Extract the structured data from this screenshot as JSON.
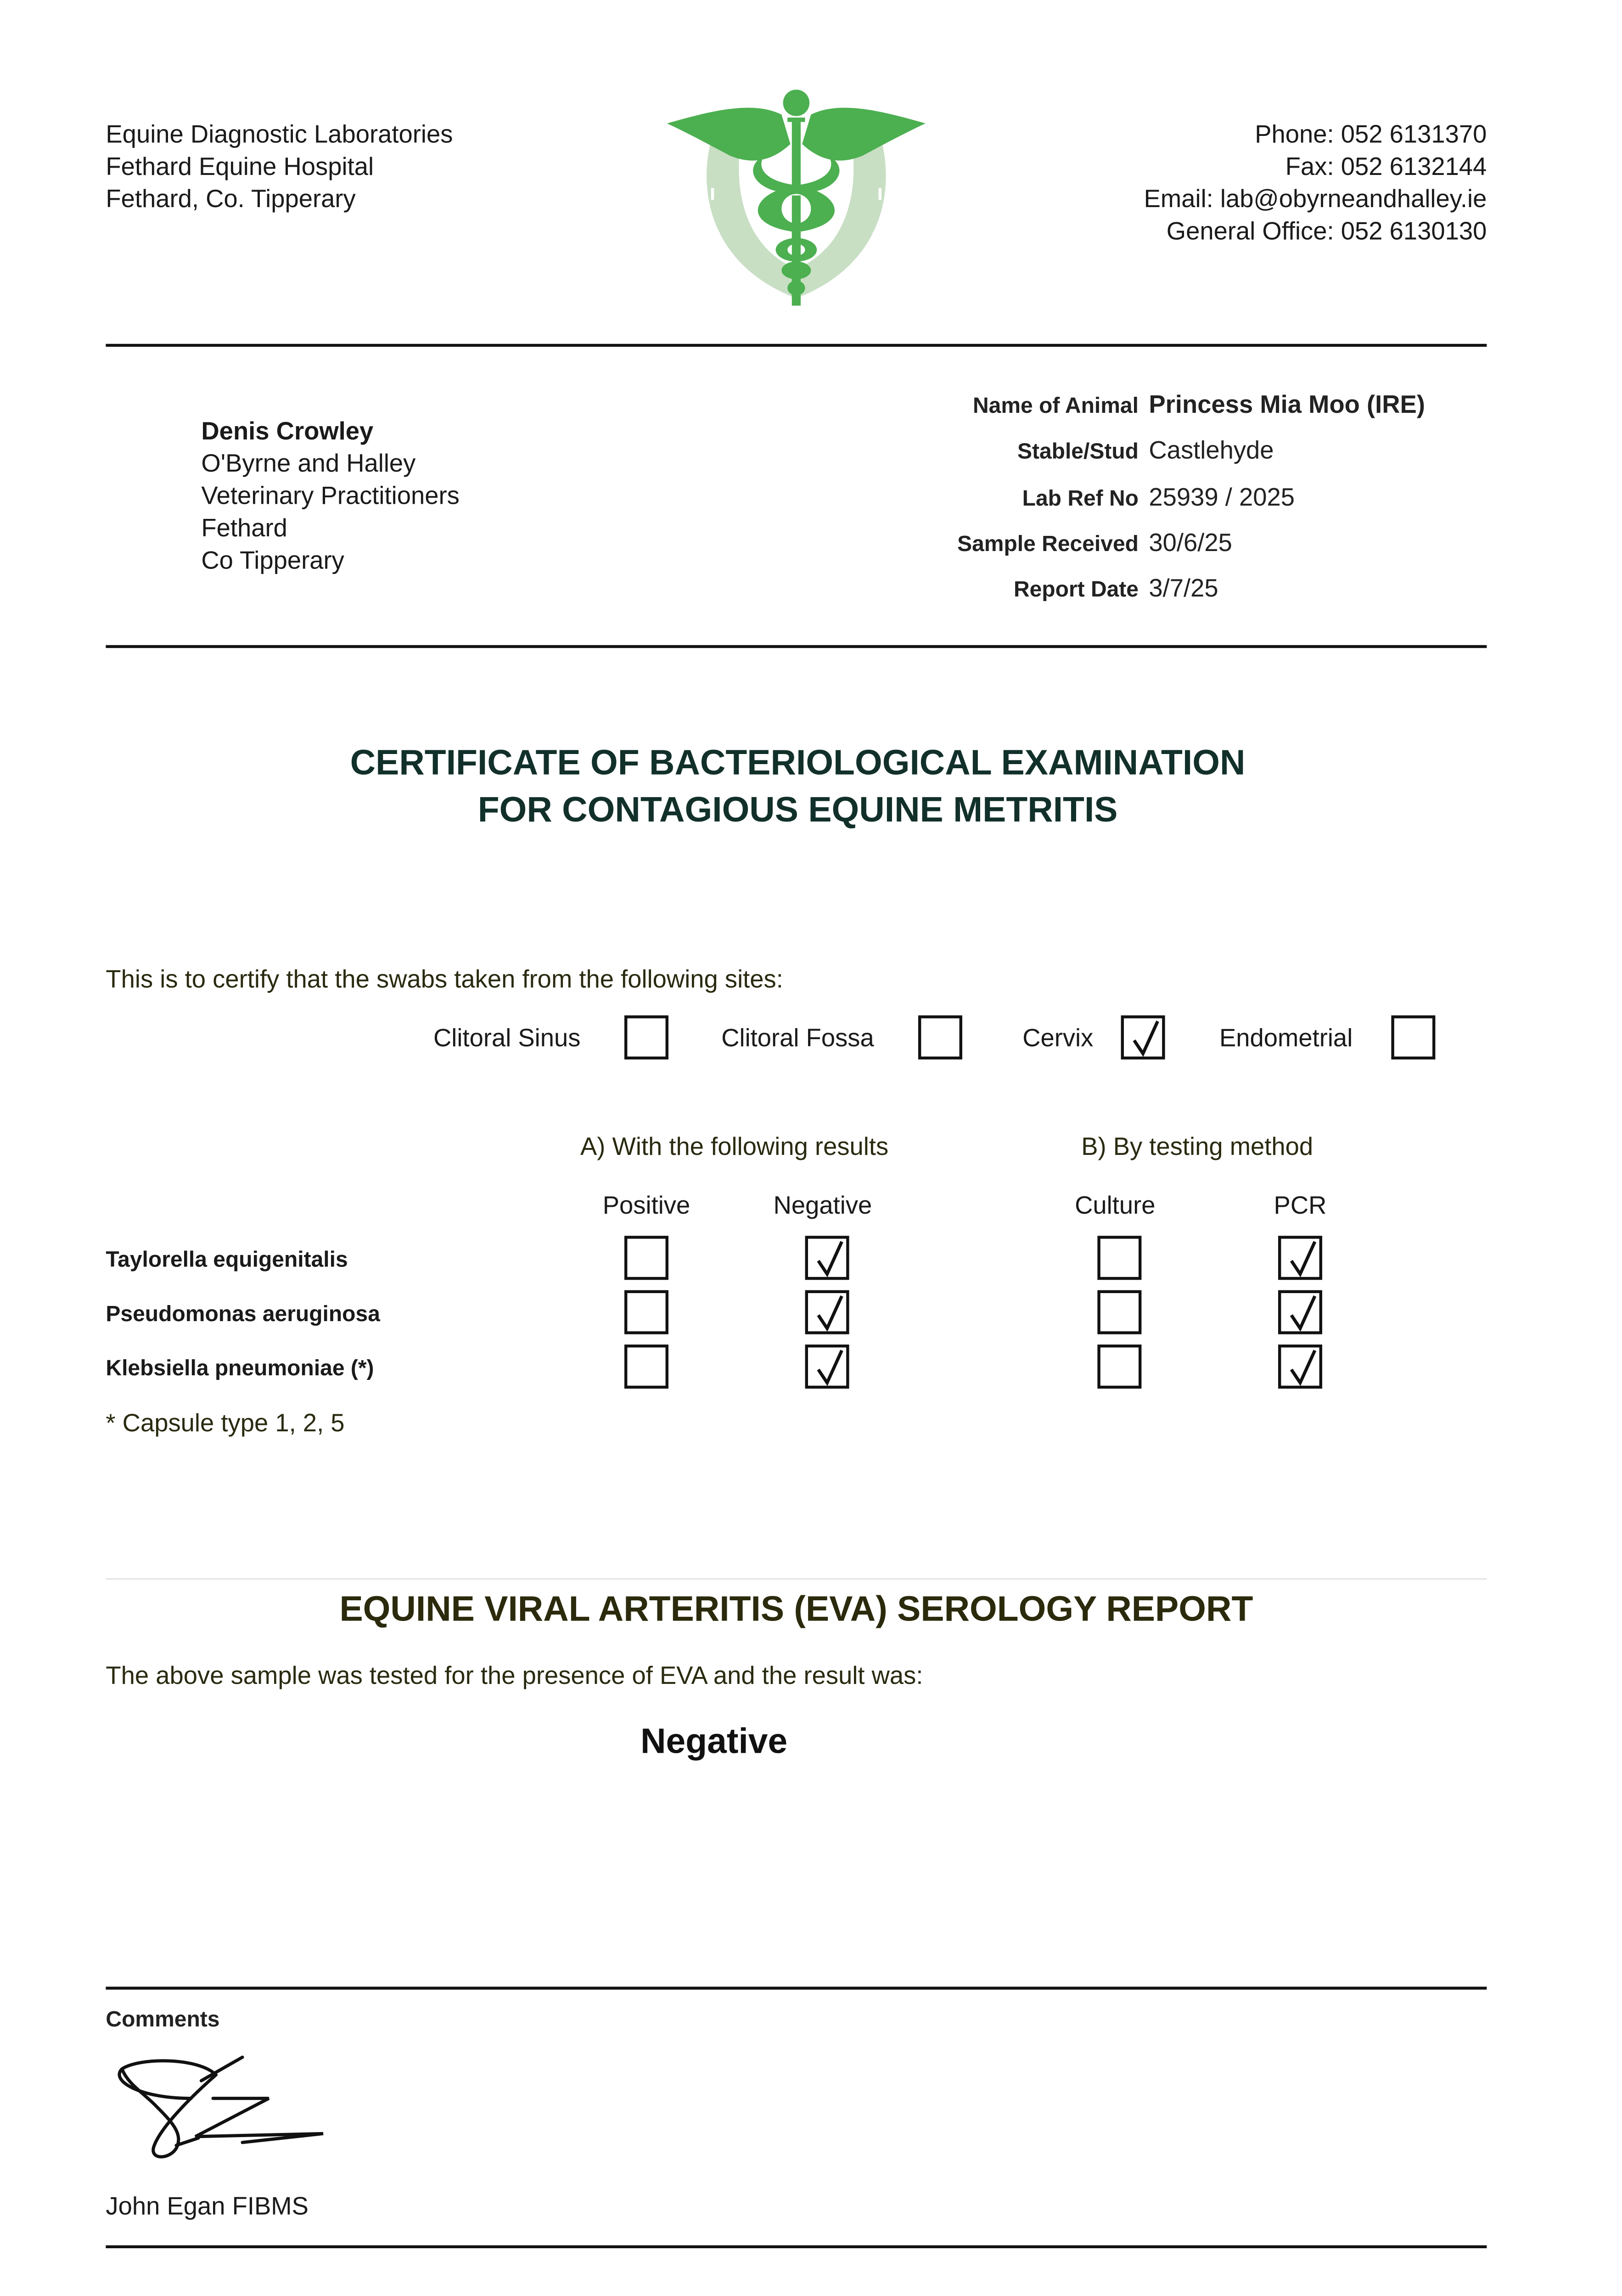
{
  "lab_address": [
    "Equine Diagnostic Laboratories",
    "Fethard Equine Hospital",
    "Fethard, Co. Tipperary"
  ],
  "contact": [
    "Phone: 052 6131370",
    "Fax: 052 6132144",
    "Email: lab@obyrneandhalley.ie",
    "General Office: 052 6130130"
  ],
  "logo": {
    "icon": "caduceus-horseshoe",
    "colors": {
      "caduceus": "#4caf50",
      "horseshoe": "#c8dfc4"
    }
  },
  "recipient": {
    "name": "Denis Crowley",
    "lines": [
      "O'Byrne and Halley",
      "Veterinary Practitioners",
      "Fethard",
      "Co Tipperary"
    ]
  },
  "info": [
    {
      "label": "Name of Animal",
      "value": "Princess Mia Moo (IRE)"
    },
    {
      "label": "Stable/Stud",
      "value": "Castlehyde"
    },
    {
      "label": "Lab Ref No",
      "value": "25939 / 2025"
    },
    {
      "label": "Sample Received",
      "value": "30/6/25"
    },
    {
      "label": "Report Date",
      "value": "3/7/25"
    }
  ],
  "title": [
    "CERTIFICATE OF BACTERIOLOGICAL EXAMINATION",
    "FOR CONTAGIOUS EQUINE METRITIS"
  ],
  "certify_text": "This is to certify that the swabs taken from the following sites:",
  "sites": [
    {
      "label": "Clitoral Sinus",
      "checked": false
    },
    {
      "label": "Clitoral Fossa",
      "checked": false
    },
    {
      "label": "Cervix",
      "checked": true
    },
    {
      "label": "Endometrial",
      "checked": false
    }
  ],
  "section_a": "A) With the following results",
  "section_b": "B) By testing method",
  "columns": [
    "Positive",
    "Negative",
    "Culture",
    "PCR"
  ],
  "organisms": [
    {
      "name": "Taylorella equigenitalis",
      "checks": [
        false,
        true,
        false,
        true
      ]
    },
    {
      "name": "Pseudomonas aeruginosa",
      "checks": [
        false,
        true,
        false,
        true
      ]
    },
    {
      "name": "Klebsiella pneumoniae (*)",
      "checks": [
        false,
        true,
        false,
        true
      ]
    }
  ],
  "footnote": "* Capsule type 1, 2, 5",
  "eva": {
    "title": "EQUINE VIRAL ARTERITIS (EVA) SEROLOGY REPORT",
    "text": "The above sample was tested for the presence of EVA and the result was:",
    "result": "Negative"
  },
  "comments_label": "Comments",
  "signatory": "John Egan FIBMS"
}
